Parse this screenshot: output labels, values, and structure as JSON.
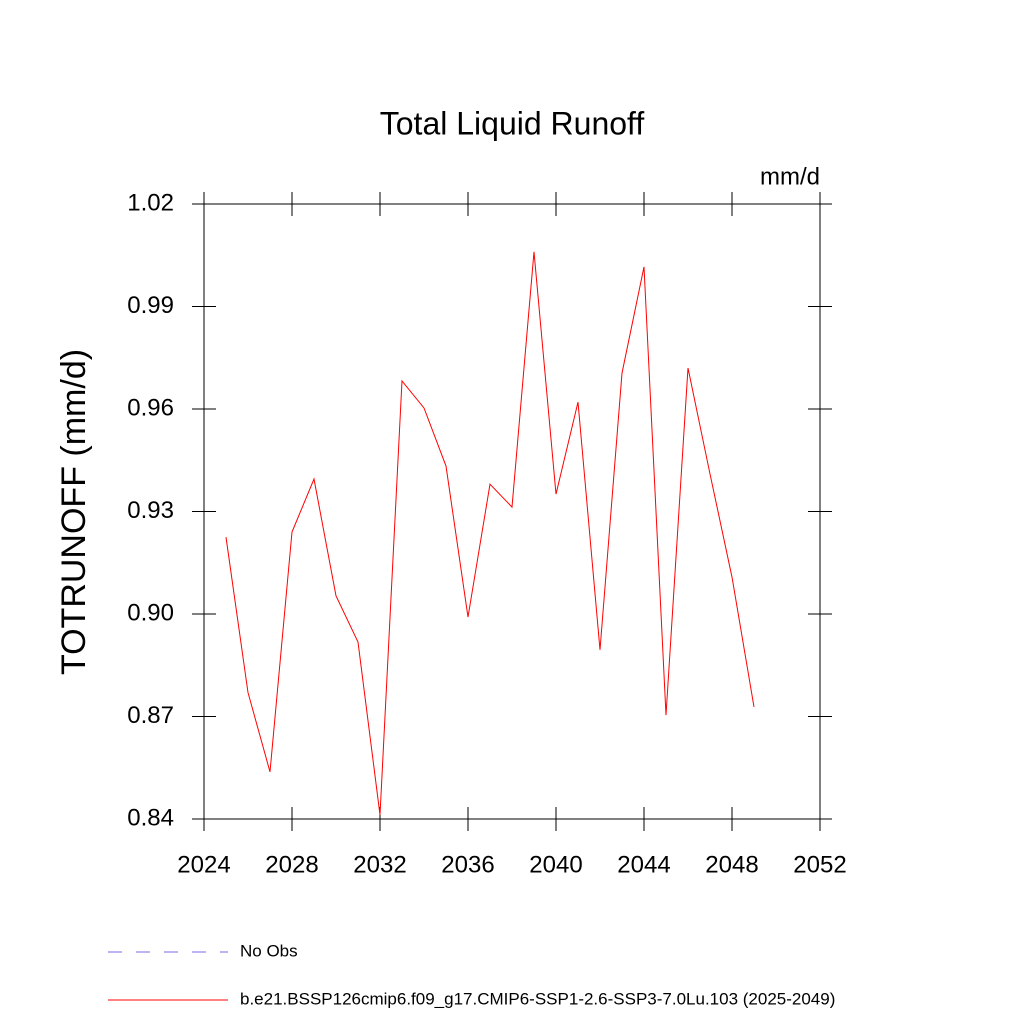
{
  "chart_data": {
    "type": "line",
    "title": "Total Liquid Runoff",
    "units_label": "mm/d",
    "y_label": "TOTRUNOFF  (mm/d)",
    "x": [
      2025,
      2026,
      2027,
      2028,
      2029,
      2030,
      2031,
      2032,
      2033,
      2034,
      2035,
      2036,
      2037,
      2038,
      2039,
      2040,
      2041,
      2042,
      2043,
      2044,
      2045,
      2046,
      2047,
      2048,
      2049
    ],
    "series": [
      {
        "name": "No Obs",
        "color": "#7b68ee",
        "dashed": true,
        "values": [
          null,
          null,
          null,
          null,
          null,
          null,
          null,
          null,
          null,
          null,
          null,
          null,
          null,
          null,
          null,
          null,
          null,
          null,
          null,
          null,
          null,
          null,
          null,
          null,
          null
        ]
      },
      {
        "name": "b.e21.BSSP126cmip6.f09_g17.CMIP6-SSP1-2.6-SSP3-7.0Lu.103 (2025-2049)",
        "color": "#ff0000",
        "dashed": false,
        "values": [
          0.9225,
          0.877,
          0.8538,
          0.924,
          0.9395,
          0.9053,
          0.8918,
          0.8412,
          0.9682,
          0.9603,
          0.9433,
          0.8991,
          0.938,
          0.9313,
          1.006,
          0.9351,
          0.962,
          0.8895,
          0.9705,
          1.0016,
          0.8704,
          0.972,
          0.941,
          0.9108,
          0.8728
        ]
      }
    ],
    "xlim": [
      2024,
      2052
    ],
    "xticks": [
      2024,
      2028,
      2032,
      2036,
      2040,
      2044,
      2048,
      2052
    ],
    "ylim": [
      0.84,
      1.02
    ],
    "yticks": [
      0.84,
      0.87,
      {
        "value": 0.9,
        "label": "0.90"
      },
      0.93,
      0.96,
      0.99,
      1.02
    ]
  }
}
